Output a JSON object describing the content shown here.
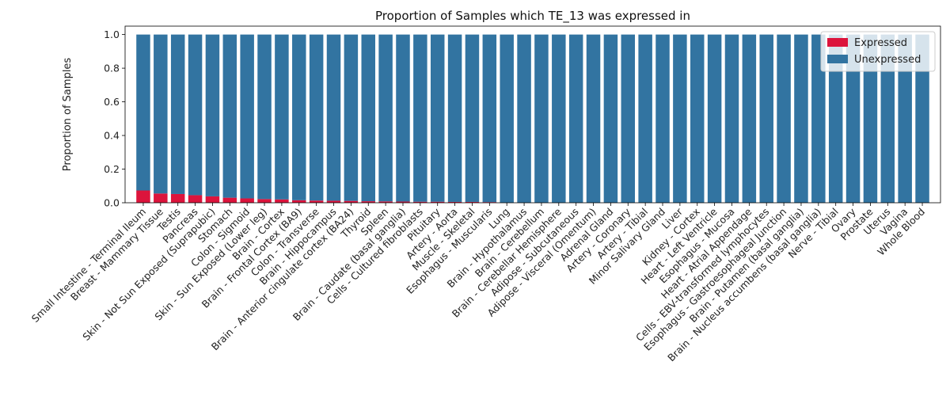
{
  "chart_data": {
    "type": "bar",
    "stacked": true,
    "title": "Proportion of Samples which TE_13 was expressed in",
    "ylabel": "Proportion of Samples",
    "xlabel": "",
    "ylim": [
      0,
      1.05
    ],
    "yticks": [
      "0.0",
      "0.2",
      "0.4",
      "0.6",
      "0.8",
      "1.0"
    ],
    "legend_position": "top-right",
    "categories": [
      "Small Intestine - Terminal Ileum",
      "Breast - Mammary Tissue",
      "Testis",
      "Pancreas",
      "Skin - Not Sun Exposed (Suprapubic)",
      "Stomach",
      "Colon - Sigmoid",
      "Skin - Sun Exposed (Lower leg)",
      "Brain - Cortex",
      "Brain - Frontal Cortex (BA9)",
      "Colon - Transverse",
      "Brain - Hippocampus",
      "Brain - Anterior cingulate cortex (BA24)",
      "Thyroid",
      "Spleen",
      "Brain - Caudate (basal ganglia)",
      "Cells - Cultured fibroblasts",
      "Pituitary",
      "Artery - Aorta",
      "Muscle - Skeletal",
      "Esophagus - Muscularis",
      "Lung",
      "Brain - Hypothalamus",
      "Brain - Cerebellum",
      "Brain - Cerebellar Hemisphere",
      "Adipose - Subcutaneous",
      "Adipose - Visceral (Omentum)",
      "Adrenal Gland",
      "Artery - Coronary",
      "Artery - Tibial",
      "Minor Salivary Gland",
      "Liver",
      "Kidney - Cortex",
      "Heart - Left Ventricle",
      "Esophagus - Mucosa",
      "Heart - Atrial Appendage",
      "Cells - EBV-transformed lymphocytes",
      "Esophagus - Gastroesophageal Junction",
      "Brain - Putamen (basal ganglia)",
      "Brain - Nucleus accumbens (basal ganglia)",
      "Nerve - Tibial",
      "Ovary",
      "Prostate",
      "Uterus",
      "Vagina",
      "Whole Blood"
    ],
    "series": [
      {
        "name": "Expressed",
        "color": "#dc143c",
        "values": [
          0.073,
          0.055,
          0.052,
          0.045,
          0.038,
          0.03,
          0.026,
          0.022,
          0.02,
          0.015,
          0.013,
          0.012,
          0.011,
          0.009,
          0.008,
          0.007,
          0.006,
          0.006,
          0.005,
          0.005,
          0.004,
          0,
          0,
          0,
          0,
          0,
          0,
          0,
          0,
          0,
          0,
          0,
          0,
          0,
          0,
          0,
          0,
          0,
          0,
          0,
          0,
          0,
          0,
          0,
          0,
          0
        ]
      },
      {
        "name": "Unexpressed",
        "color": "#3274a1",
        "values": [
          0.927,
          0.945,
          0.948,
          0.955,
          0.962,
          0.97,
          0.974,
          0.978,
          0.98,
          0.985,
          0.987,
          0.988,
          0.989,
          0.991,
          0.992,
          0.993,
          0.994,
          0.994,
          0.995,
          0.995,
          0.996,
          1,
          1,
          1,
          1,
          1,
          1,
          1,
          1,
          1,
          1,
          1,
          1,
          1,
          1,
          1,
          1,
          1,
          1,
          1,
          1,
          1,
          1,
          1,
          1,
          1
        ]
      }
    ]
  }
}
